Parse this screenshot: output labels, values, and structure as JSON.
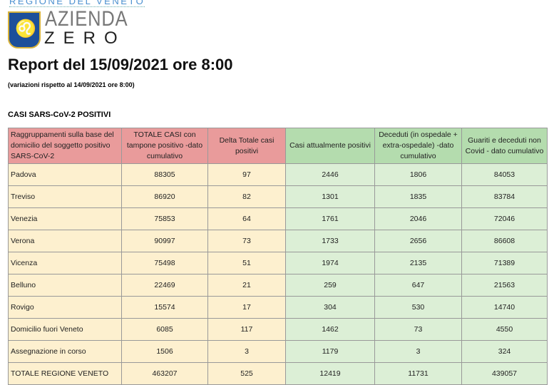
{
  "header": {
    "region": "REGIONE DEL VENETO",
    "logo_line1": "AZIENDA",
    "logo_line2": "ZERO",
    "title": "Report del 15/09/2021 ore 8:00",
    "subtitle": "(variazioni rispetto al 14/09/2021 ore 8:00)",
    "section": "CASI SARS-CoV-2 POSITIVI"
  },
  "table": {
    "columns": [
      "Raggruppamenti sulla base del domicilio del soggetto positivo SARS-CoV-2",
      "TOTALE CASI con tampone positivo -dato cumulativo",
      "Delta Totale casi positivi",
      "Casi attualmente positivi",
      "Deceduti (in ospedale + extra-ospedale) -dato cumulativo",
      "Guariti e deceduti non Covid - dato cumulativo"
    ],
    "rows": [
      [
        "Padova",
        "88305",
        "97",
        "2446",
        "1806",
        "84053"
      ],
      [
        "Treviso",
        "86920",
        "82",
        "1301",
        "1835",
        "83784"
      ],
      [
        "Venezia",
        "75853",
        "64",
        "1761",
        "2046",
        "72046"
      ],
      [
        "Verona",
        "90997",
        "73",
        "1733",
        "2656",
        "86608"
      ],
      [
        "Vicenza",
        "75498",
        "51",
        "1974",
        "2135",
        "71389"
      ],
      [
        "Belluno",
        "22469",
        "21",
        "259",
        "647",
        "21563"
      ],
      [
        "Rovigo",
        "15574",
        "17",
        "304",
        "530",
        "14740"
      ],
      [
        "Domicilio fuori Veneto",
        "6085",
        "117",
        "1462",
        "73",
        "4550"
      ],
      [
        "Assegnazione in corso",
        "1506",
        "3",
        "1179",
        "3",
        "324"
      ],
      [
        "TOTALE REGIONE VENETO",
        "463207",
        "525",
        "12419",
        "11731",
        "439057"
      ]
    ]
  },
  "colors": {
    "header_red": "#e99b9b",
    "header_green": "#b4dcae",
    "body_yellow": "#fdf0cf",
    "body_green": "#dcefd6"
  }
}
